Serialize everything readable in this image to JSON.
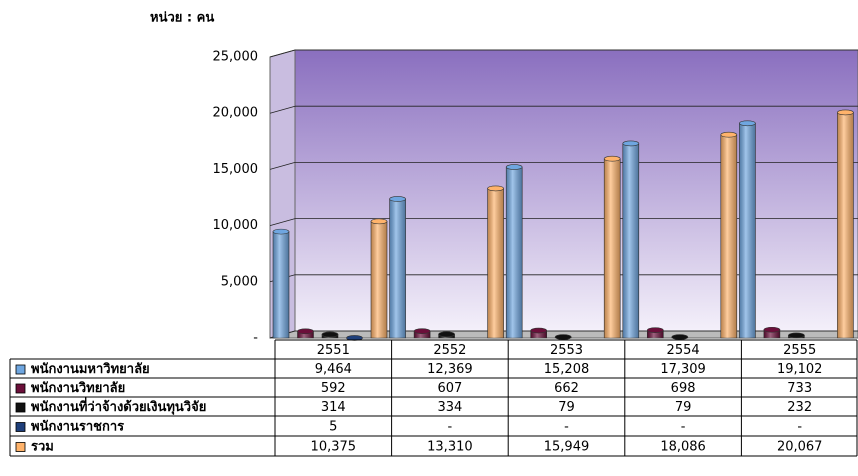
{
  "chart_data": {
    "type": "bar",
    "title": "หน่วย : คน",
    "categories": [
      "2551",
      "2552",
      "2553",
      "2554",
      "2555"
    ],
    "series": [
      {
        "name": "พนักงานมหาวิทยาลัย",
        "color": "#6fa6e0",
        "values": [
          9464,
          12369,
          15208,
          17309,
          19102
        ],
        "value_labels": [
          "9,464",
          "12,369",
          "15,208",
          "17,309",
          "19,102"
        ]
      },
      {
        "name": "พนักงานวิทยาลัย",
        "color": "#6b0f3a",
        "values": [
          592,
          607,
          662,
          698,
          733
        ],
        "value_labels": [
          "592",
          "607",
          "662",
          "698",
          "733"
        ]
      },
      {
        "name": "พนักงานที่ว่าจ้างด้วยเงินทุนวิจัย",
        "color": "#111111",
        "values": [
          314,
          334,
          79,
          79,
          232
        ],
        "value_labels": [
          "314",
          "334",
          "79",
          "79",
          "232"
        ]
      },
      {
        "name": "พนักงานราชการ",
        "color": "#1f3f7a",
        "values": [
          5,
          null,
          null,
          null,
          null
        ],
        "value_labels": [
          "5",
          "-",
          "-",
          "-",
          "-"
        ]
      },
      {
        "name": "รวม",
        "color": "#ffb36b",
        "values": [
          10375,
          13310,
          15949,
          18086,
          20067
        ],
        "value_labels": [
          "10,375",
          "13,310",
          "15,949",
          "18,086",
          "20,067"
        ]
      }
    ],
    "ylim": [
      0,
      25000
    ],
    "yticks": [
      {
        "value": 0,
        "label": "-"
      },
      {
        "value": 5000,
        "label": "5,000"
      },
      {
        "value": 10000,
        "label": "10,000"
      },
      {
        "value": 15000,
        "label": "15,000"
      },
      {
        "value": 20000,
        "label": "20,000"
      },
      {
        "value": 25000,
        "label": "25,000"
      }
    ],
    "grid": true
  }
}
